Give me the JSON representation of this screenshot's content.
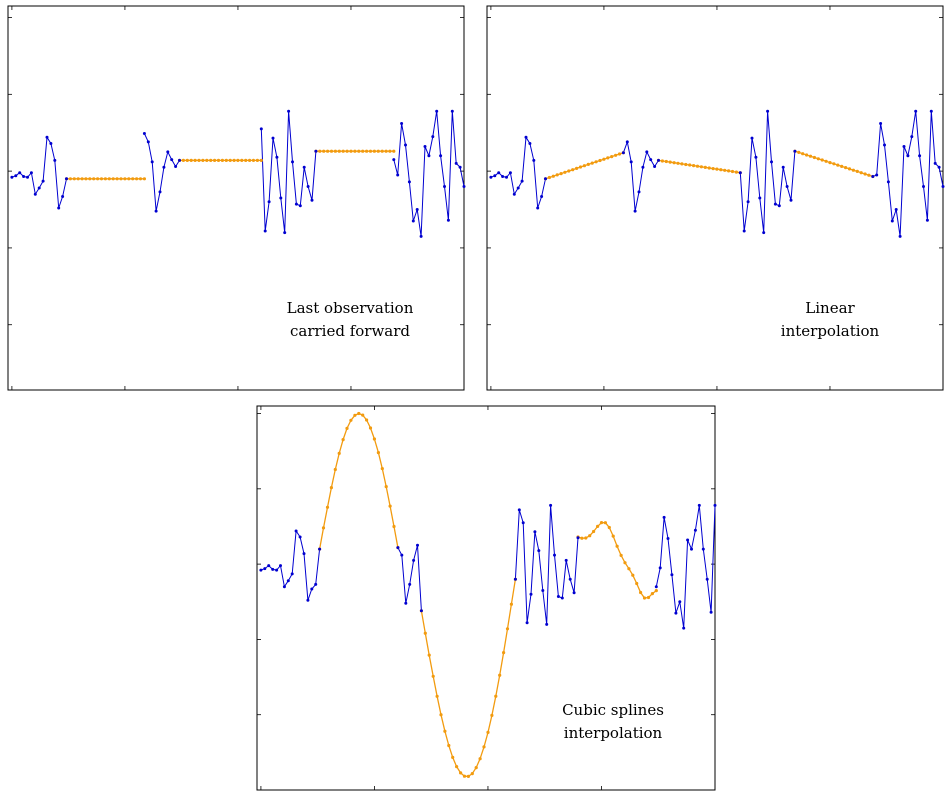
{
  "colors": {
    "observed": "#0000d0",
    "imputed": "#f29b0f",
    "frame": "#000000"
  },
  "base_series": [
    -0.08,
    -0.06,
    -0.02,
    -0.07,
    -0.08,
    -0.02,
    -0.3,
    -0.22,
    -0.13,
    0.44,
    0.36,
    0.14,
    -0.48,
    -0.33,
    -0.27,
    0.49,
    0.38,
    0.12,
    -0.52,
    -0.27,
    0.05,
    0.25,
    0.15,
    0.06,
    0.72,
    0.55,
    -0.78,
    -0.4,
    0.43,
    0.18,
    -0.35,
    -0.8,
    0.78,
    0.12,
    -0.43,
    -0.45,
    0.05,
    -0.2,
    -0.38,
    0.3,
    0.15,
    -0.05,
    0.62,
    0.34,
    -0.14,
    -0.65,
    -0.5,
    -0.85,
    0.32,
    0.2,
    0.45,
    0.78,
    0.2,
    -0.2,
    -0.64,
    0.78,
    0.1,
    0.05,
    -0.2,
    -0.62,
    -0.48,
    0.64,
    0.52,
    -0.85,
    0.02,
    -0.12,
    0.2,
    1.14,
    -0.22,
    0.13,
    0.23
  ],
  "chart_data": [
    {
      "type": "line",
      "method": "locf",
      "annotation": [
        "Last observation",
        "carried forward"
      ],
      "series": [
        {
          "values": "observed",
          "color": "#0000d0"
        },
        {
          "values": "imputed",
          "color": "#f29b0f"
        }
      ],
      "gaps": [
        {
          "start": 14,
          "end": 34,
          "fill": -0.1
        },
        {
          "start": 43,
          "end": 64,
          "fill": 0.14
        },
        {
          "start": 78,
          "end": 98,
          "fill": 0.26
        }
      ],
      "x_ticks": [
        0,
        29,
        58,
        87,
        116
      ],
      "y_ticks": [
        -2,
        -1,
        0,
        1,
        2
      ],
      "xlim": [
        -1,
        116
      ],
      "ylim": [
        -2.85,
        2.15
      ],
      "grid": false
    },
    {
      "type": "line",
      "method": "linear",
      "annotation": [
        "Linear",
        "interpolation"
      ],
      "series": [
        {
          "values": "observed",
          "color": "#0000d0"
        },
        {
          "values": "imputed",
          "color": "#f29b0f"
        }
      ],
      "gaps": [
        {
          "start": 14,
          "end": 34,
          "from": -0.1,
          "to": 0.24
        },
        {
          "start": 43,
          "end": 64,
          "from": 0.14,
          "to": -0.02
        },
        {
          "start": 78,
          "end": 98,
          "from": 0.26,
          "to": -0.07
        }
      ],
      "x_ticks": [
        0,
        29,
        58,
        87,
        116
      ],
      "y_ticks": [
        -2,
        -1,
        0,
        1,
        2
      ],
      "xlim": [
        -1,
        116
      ],
      "ylim": [
        -2.85,
        2.15
      ],
      "grid": false
    },
    {
      "type": "line",
      "method": "cubic-spline",
      "annotation": [
        "Cubic splines",
        "interpolation"
      ],
      "series": [
        {
          "values": "observed",
          "color": "#0000d0"
        },
        {
          "values": "imputed",
          "color": "#f29b0f"
        }
      ],
      "gaps": [
        {
          "start": 15,
          "end": 35,
          "from": 0.2,
          "to": 0.22,
          "peak": 2.0
        },
        {
          "start": 41,
          "end": 65,
          "from": -0.62,
          "to": -0.2,
          "peak": -2.82
        },
        {
          "start": 81,
          "end": 101,
          "from": 0.35,
          "to": -0.3,
          "peak": 0.55,
          "trough": -0.45
        }
      ],
      "x_ticks": [
        0,
        29,
        58,
        87,
        116
      ],
      "y_ticks": [
        -2,
        -1,
        0,
        1,
        2
      ],
      "xlim": [
        -1,
        116
      ],
      "ylim": [
        -3.0,
        2.1
      ],
      "grid": false
    }
  ]
}
